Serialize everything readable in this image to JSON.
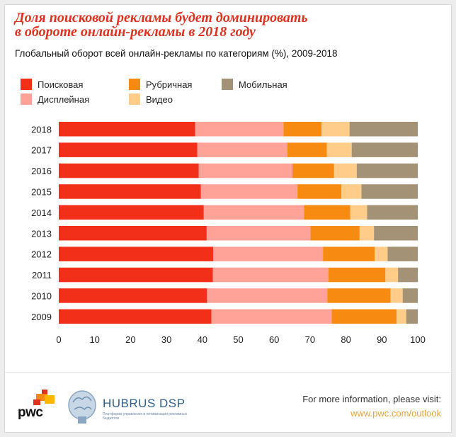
{
  "header": {
    "title_line1": "Доля поисковой рекламы будет доминировать",
    "title_line2": "в обороте онлайн-рекламы в 2018 году",
    "subtitle": "Глобальный оборот всей онлайн-рекламы по категориям (%), 2009-2018"
  },
  "colors": {
    "search": "#f22f18",
    "display": "#ffa399",
    "classified": "#f78b12",
    "video": "#ffcc8a",
    "mobile": "#a39276",
    "title": "#e0301e",
    "link": "#e8a33a"
  },
  "chart_data": {
    "type": "bar",
    "orientation": "horizontal",
    "stacked": true,
    "title": "Глобальный оборот всей онлайн-рекламы по категориям (%), 2009-2018",
    "xlabel": "",
    "ylabel": "",
    "xlim": [
      0,
      100
    ],
    "xticks": [
      0,
      10,
      20,
      30,
      40,
      50,
      60,
      70,
      80,
      90,
      100
    ],
    "grid": false,
    "legend_position": "top",
    "categories": [
      "2018",
      "2017",
      "2016",
      "2015",
      "2014",
      "2013",
      "2012",
      "2011",
      "2010",
      "2009"
    ],
    "series": [
      {
        "name": "Поисковая",
        "color": "#f22f18",
        "values": [
          38.0,
          38.6,
          39.0,
          39.6,
          40.4,
          41.2,
          43.0,
          42.9,
          41.3,
          42.5
        ]
      },
      {
        "name": "Дисплейная",
        "color": "#ffa399",
        "values": [
          24.6,
          25.1,
          26.1,
          26.9,
          27.9,
          28.9,
          30.6,
          32.2,
          33.5,
          33.5
        ]
      },
      {
        "name": "Рубричная",
        "color": "#f78b12",
        "values": [
          10.6,
          11.0,
          11.6,
          12.2,
          12.9,
          13.7,
          14.4,
          15.9,
          17.6,
          18.1
        ]
      },
      {
        "name": "Видео",
        "color": "#ffcc8a",
        "values": [
          7.8,
          6.9,
          6.3,
          5.6,
          4.7,
          4.0,
          3.6,
          3.5,
          3.4,
          2.7
        ]
      },
      {
        "name": "Мобильная",
        "color": "#a39276",
        "values": [
          19.0,
          18.4,
          17.0,
          15.7,
          14.1,
          12.2,
          8.4,
          5.5,
          4.2,
          3.2
        ]
      }
    ]
  },
  "legend": {
    "items": [
      {
        "label": "Поисковая",
        "color": "#f22f18"
      },
      {
        "label": "Рубричная",
        "color": "#f78b12"
      },
      {
        "label": "Мобильная",
        "color": "#a39276"
      },
      {
        "label": "Дисплейная",
        "color": "#ffa399"
      },
      {
        "label": "Видео",
        "color": "#ffcc8a"
      }
    ]
  },
  "footer": {
    "pwc_logo_text": "pwc",
    "hubrus_name": "HUBRUS DSP",
    "hubrus_tagline": "Платформа управления и оптимизации рекламных бюджетов",
    "info_text": "For more information, please visit:",
    "info_link": "www.pwc.com/outlook"
  }
}
